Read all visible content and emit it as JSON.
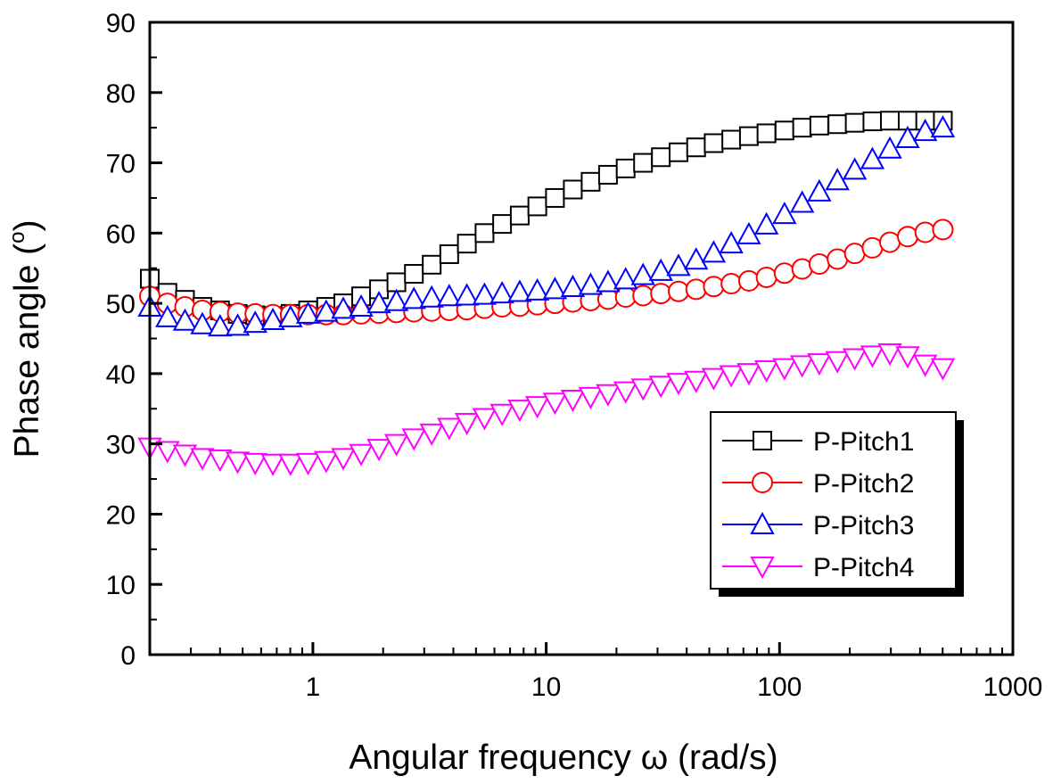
{
  "chart_data": {
    "type": "scatter",
    "xscale": "log",
    "xlabel": "Angular frequency ω (rad/s)",
    "ylabel": "Phase angle (",
    "ylabel_unit": "o",
    "ylabel_close": ")",
    "xlim": [
      0.2,
      1000
    ],
    "ylim": [
      0,
      90
    ],
    "xticks": [
      1,
      10,
      100,
      1000
    ],
    "xtick_labels": [
      "1",
      "10",
      "100",
      "1000"
    ],
    "yticks": [
      0,
      10,
      20,
      30,
      40,
      50,
      60,
      70,
      80,
      90
    ],
    "ytick_labels": [
      "0",
      "10",
      "20",
      "30",
      "40",
      "50",
      "60",
      "70",
      "80",
      "90"
    ],
    "legend_placement": "lower-right",
    "x": [
      0.2,
      0.238,
      0.283,
      0.336,
      0.4,
      0.476,
      0.566,
      0.674,
      0.802,
      0.954,
      1.14,
      1.35,
      1.61,
      1.92,
      2.28,
      2.71,
      3.23,
      3.84,
      4.57,
      5.44,
      6.47,
      7.7,
      9.16,
      10.9,
      13.0,
      15.5,
      18.4,
      21.9,
      26.0,
      31.0,
      36.9,
      43.9,
      52.2,
      62.1,
      73.9,
      87.9,
      105,
      125,
      148,
      177,
      210,
      250,
      297,
      354,
      421,
      501
    ],
    "series": [
      {
        "name": "P-Pitch1",
        "marker": "square",
        "color": "#000000",
        "values": [
          53.5,
          51.5,
          50.5,
          49.5,
          49,
          48.5,
          48.3,
          48.2,
          48.5,
          49,
          49.5,
          50,
          51,
          52,
          53,
          54.2,
          55.5,
          57,
          58.5,
          60,
          61.3,
          62.5,
          63.8,
          65,
          66.2,
          67.3,
          68.3,
          69.2,
          70,
          70.8,
          71.5,
          72.2,
          72.8,
          73.3,
          73.8,
          74.2,
          74.6,
          75,
          75.3,
          75.5,
          75.7,
          75.9,
          76,
          76,
          76,
          76
        ]
      },
      {
        "name": "P-Pitch2",
        "marker": "circle",
        "color": "#ff0000",
        "values": [
          51,
          50,
          49.5,
          49,
          48.8,
          48.6,
          48.5,
          48.4,
          48.4,
          48.4,
          48.4,
          48.4,
          48.5,
          48.6,
          48.7,
          48.8,
          48.9,
          49,
          49.1,
          49.3,
          49.5,
          49.6,
          49.8,
          50,
          50.2,
          50.4,
          50.6,
          50.9,
          51.1,
          51.4,
          51.7,
          52,
          52.4,
          52.8,
          53.2,
          53.7,
          54.3,
          54.9,
          55.6,
          56.3,
          57.1,
          57.9,
          58.7,
          59.5,
          60.1,
          60.5
        ]
      },
      {
        "name": "P-Pitch3",
        "marker": "triangle-up",
        "color": "#0000ff",
        "values": [
          49.5,
          48,
          47.5,
          47,
          46.7,
          46.8,
          47.2,
          47.6,
          48,
          48.5,
          48.8,
          49.2,
          49.5,
          50,
          50.3,
          50.6,
          50.8,
          51,
          51.1,
          51.2,
          51.4,
          51.6,
          51.8,
          52,
          52.3,
          52.6,
          53,
          53.4,
          54,
          54.6,
          55.3,
          56.2,
          57.2,
          58.5,
          59.8,
          61.2,
          62.7,
          64.3,
          65.9,
          67.5,
          69,
          70.5,
          72,
          73.5,
          74.5,
          75
        ]
      },
      {
        "name": "P-Pitch4",
        "marker": "triangle-down",
        "color": "#ff00ff",
        "values": [
          29.5,
          29,
          28.5,
          28,
          27.8,
          27.5,
          27.3,
          27.2,
          27.2,
          27.3,
          27.6,
          28,
          28.6,
          29.3,
          30,
          30.8,
          31.5,
          32.3,
          33,
          33.7,
          34.3,
          34.9,
          35.4,
          35.9,
          36.3,
          36.7,
          37.1,
          37.5,
          37.9,
          38.3,
          38.7,
          39,
          39.4,
          39.8,
          40.1,
          40.5,
          40.8,
          41.2,
          41.5,
          41.8,
          42.2,
          42.6,
          42.9,
          42.5,
          41.3,
          40.8
        ]
      }
    ]
  }
}
